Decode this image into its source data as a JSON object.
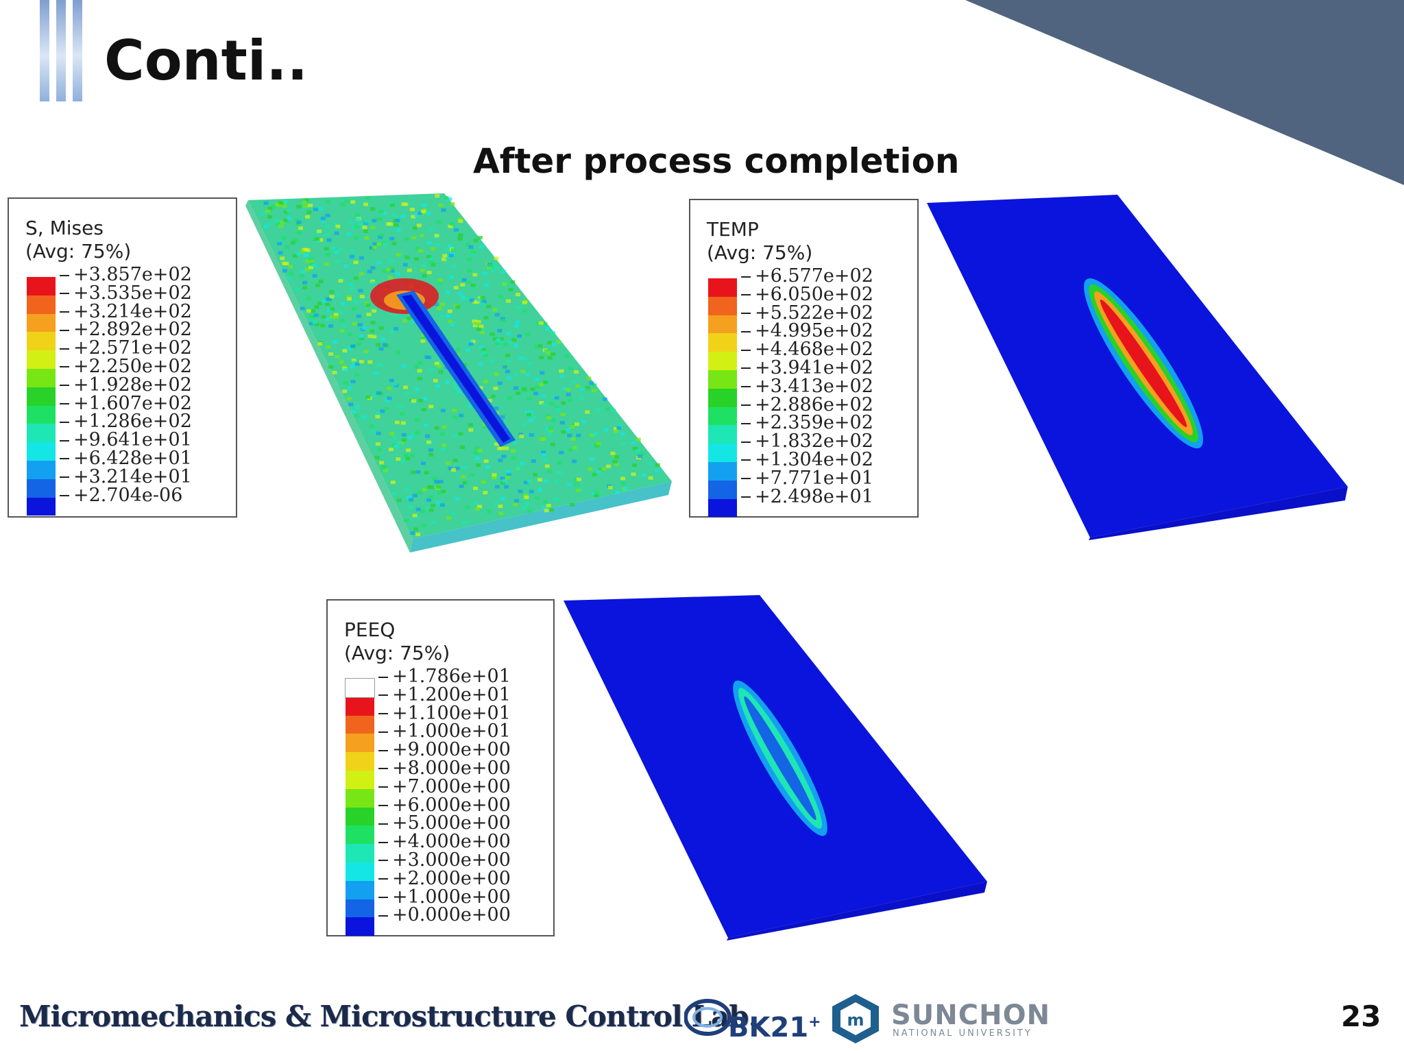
{
  "slide": {
    "title": "Conti..",
    "subtitle": "After process completion",
    "page_number": "23",
    "accent_color": "#50647f"
  },
  "legends": [
    {
      "title_line1": "S, Mises",
      "title_line2": "(Avg: 75%)",
      "values": [
        "+3.857e+02",
        "+3.535e+02",
        "+3.214e+02",
        "+2.892e+02",
        "+2.571e+02",
        "+2.250e+02",
        "+1.928e+02",
        "+1.607e+02",
        "+1.286e+02",
        "+9.641e+01",
        "+6.428e+01",
        "+3.214e+01",
        "+2.704e-06"
      ],
      "colors": [
        "#e8141c",
        "#f0641e",
        "#f5a01e",
        "#f0d219",
        "#d2f014",
        "#78e614",
        "#28d228",
        "#1ee164",
        "#1ee6b4",
        "#14e6e6",
        "#14a0f0",
        "#1464e6",
        "#0a14dc"
      ]
    },
    {
      "title_line1": "TEMP",
      "title_line2": "(Avg: 75%)",
      "values": [
        "+6.577e+02",
        "+6.050e+02",
        "+5.522e+02",
        "+4.995e+02",
        "+4.468e+02",
        "+3.941e+02",
        "+3.413e+02",
        "+2.886e+02",
        "+2.359e+02",
        "+1.832e+02",
        "+1.304e+02",
        "+7.771e+01",
        "+2.498e+01"
      ],
      "colors": [
        "#e8141c",
        "#f0641e",
        "#f5a01e",
        "#f0d219",
        "#d2f014",
        "#78e614",
        "#28d228",
        "#1ee164",
        "#1ee6b4",
        "#14e6e6",
        "#14a0f0",
        "#1464e6",
        "#0a14dc"
      ]
    },
    {
      "title_line1": "PEEQ",
      "title_line2": "(Avg: 75%)",
      "values": [
        "+1.786e+01",
        "+1.200e+01",
        "+1.100e+01",
        "+1.000e+01",
        "+9.000e+00",
        "+8.000e+00",
        "+7.000e+00",
        "+6.000e+00",
        "+5.000e+00",
        "+4.000e+00",
        "+3.000e+00",
        "+2.000e+00",
        "+1.000e+00",
        "+0.000e+00"
      ],
      "colors": [
        "#ffffff",
        "#e8141c",
        "#f0641e",
        "#f5a01e",
        "#f0d219",
        "#d2f014",
        "#78e614",
        "#28d228",
        "#1ee164",
        "#1ee6b4",
        "#14e6e6",
        "#14a0f0",
        "#1464e6",
        "#0a14dc"
      ]
    }
  ],
  "footer": {
    "lab_name": "Micromechanics & Microstructure Control Lab.",
    "bk_logo_text": "BK21",
    "bk_logo_plus": "+",
    "university_name": "SUNCHON",
    "university_sub": "NATIONAL UNIVERSITY"
  }
}
